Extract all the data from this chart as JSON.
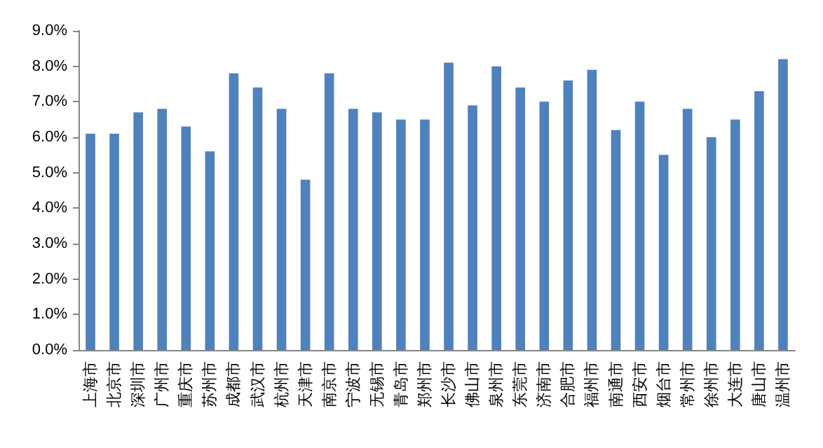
{
  "chart_data": {
    "type": "bar",
    "categories": [
      "上海市",
      "北京市",
      "深圳市",
      "广州市",
      "重庆市",
      "苏州市",
      "成都市",
      "武汉市",
      "杭州市",
      "天津市",
      "南京市",
      "宁波市",
      "无锡市",
      "青岛市",
      "郑州市",
      "长沙市",
      "佛山市",
      "泉州市",
      "东莞市",
      "济南市",
      "合肥市",
      "福州市",
      "南通市",
      "西安市",
      "烟台市",
      "常州市",
      "徐州市",
      "大连市",
      "唐山市",
      "温州市"
    ],
    "values": [
      6.1,
      6.1,
      6.7,
      6.8,
      6.3,
      5.6,
      7.8,
      7.4,
      6.8,
      4.8,
      7.8,
      6.8,
      6.7,
      6.5,
      6.5,
      8.1,
      6.9,
      8.0,
      7.4,
      7.0,
      7.6,
      7.9,
      6.2,
      7.0,
      5.5,
      6.8,
      6.0,
      6.5,
      7.3,
      8.2
    ],
    "color": "#4f81bd",
    "ylim": [
      0,
      9
    ],
    "yticks": [
      {
        "value": 0,
        "label": "0.0%"
      },
      {
        "value": 1,
        "label": "1.0%"
      },
      {
        "value": 2,
        "label": "2.0%"
      },
      {
        "value": 3,
        "label": "3.0%"
      },
      {
        "value": 4,
        "label": "4.0%"
      },
      {
        "value": 5,
        "label": "5.0%"
      },
      {
        "value": 6,
        "label": "6.0%"
      },
      {
        "value": 7,
        "label": "7.0%"
      },
      {
        "value": 8,
        "label": "8.0%"
      },
      {
        "value": 9,
        "label": "9.0%"
      }
    ],
    "grid": false
  }
}
